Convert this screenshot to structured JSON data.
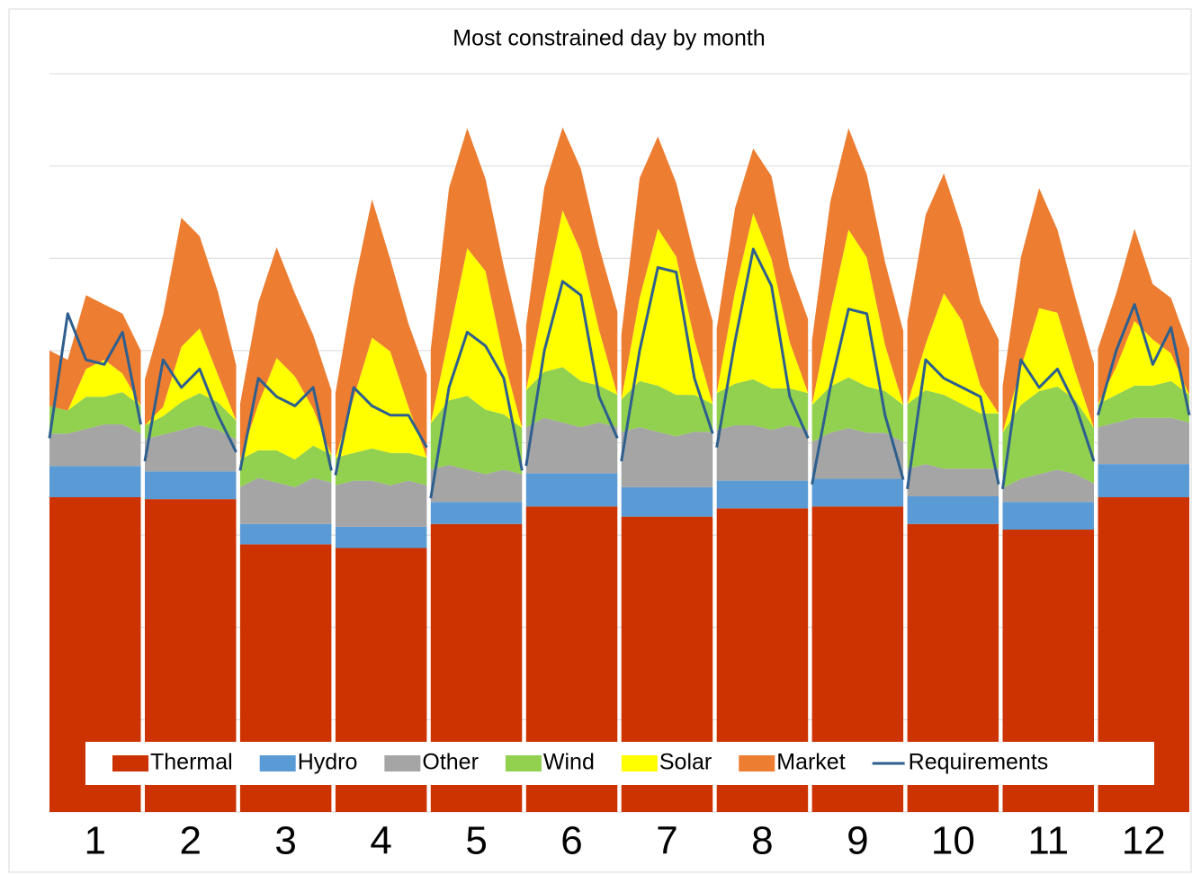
{
  "chart_data": {
    "type": "area",
    "stacked": true,
    "title": "Most constrained day by month",
    "x": [
      0,
      4.6,
      9.2,
      13.8,
      18.4,
      23,
      23.5,
      24,
      28.6,
      33.2,
      37.8,
      42.4,
      47,
      47.5,
      48,
      52.6,
      57.2,
      61.8,
      66.4,
      71,
      71.5,
      72,
      76.6,
      81.2,
      85.8,
      90.4,
      95,
      95.5,
      96,
      100.6,
      105.2,
      109.8,
      114.4,
      119,
      119.5,
      120,
      124.6,
      129.2,
      133.8,
      138.4,
      143,
      143.5,
      144,
      148.6,
      153.2,
      157.8,
      162.4,
      167,
      167.5,
      168,
      172.6,
      177.2,
      181.8,
      186.4,
      191,
      191.5,
      192,
      196.6,
      201.2,
      205.8,
      210.4,
      215,
      215.5,
      216,
      220.6,
      225.2,
      229.8,
      234.4,
      239,
      239.5,
      240,
      244.6,
      249.2,
      253.8,
      258.4,
      263,
      263.5,
      264,
      268.6,
      273.2,
      277.8,
      282.4,
      287
    ],
    "xlim": [
      0,
      287
    ],
    "xticks": [
      {
        "value": 11.5,
        "label": "1"
      },
      {
        "value": 35.5,
        "label": "2"
      },
      {
        "value": 59.5,
        "label": "3"
      },
      {
        "value": 83.5,
        "label": "4"
      },
      {
        "value": 107.5,
        "label": "5"
      },
      {
        "value": 131.5,
        "label": "6"
      },
      {
        "value": 155.5,
        "label": "7"
      },
      {
        "value": 179.5,
        "label": "8"
      },
      {
        "value": 203.5,
        "label": "9"
      },
      {
        "value": 227.5,
        "label": "10"
      },
      {
        "value": 251.5,
        "label": "11"
      },
      {
        "value": 275.5,
        "label": "12"
      }
    ],
    "ylim": [
      0,
      8
    ],
    "yticks": [
      0,
      1,
      2,
      3,
      4,
      5,
      6,
      7,
      8
    ],
    "grid": true,
    "legend": "bottom",
    "series": [
      {
        "name": "Thermal",
        "color": "#cc3300",
        "values": [
          3.41,
          3.41,
          3.41,
          3.41,
          3.41,
          3.41,
          null,
          3.39,
          3.39,
          3.39,
          3.39,
          3.39,
          3.39,
          null,
          2.9,
          2.9,
          2.9,
          2.9,
          2.9,
          2.9,
          null,
          2.86,
          2.86,
          2.86,
          2.86,
          2.86,
          2.86,
          null,
          3.12,
          3.12,
          3.12,
          3.12,
          3.12,
          3.12,
          null,
          3.31,
          3.31,
          3.31,
          3.31,
          3.31,
          3.31,
          null,
          3.2,
          3.2,
          3.2,
          3.2,
          3.2,
          3.2,
          null,
          3.29,
          3.29,
          3.29,
          3.29,
          3.29,
          3.29,
          null,
          3.31,
          3.31,
          3.31,
          3.31,
          3.31,
          3.31,
          null,
          3.12,
          3.12,
          3.12,
          3.12,
          3.12,
          3.12,
          null,
          3.06,
          3.06,
          3.06,
          3.06,
          3.06,
          3.06,
          null,
          3.41,
          3.41,
          3.41,
          3.41,
          3.41,
          3.41
        ]
      },
      {
        "name": "Hydro",
        "color": "#5b9bd5",
        "values": [
          0.34,
          0.34,
          0.34,
          0.34,
          0.34,
          0.34,
          null,
          0.3,
          0.3,
          0.3,
          0.3,
          0.3,
          0.3,
          null,
          0.22,
          0.22,
          0.22,
          0.22,
          0.22,
          0.22,
          null,
          0.23,
          0.23,
          0.23,
          0.23,
          0.23,
          0.23,
          null,
          0.24,
          0.24,
          0.24,
          0.24,
          0.24,
          0.24,
          null,
          0.36,
          0.36,
          0.36,
          0.36,
          0.36,
          0.36,
          null,
          0.32,
          0.32,
          0.32,
          0.32,
          0.32,
          0.32,
          null,
          0.3,
          0.3,
          0.3,
          0.3,
          0.3,
          0.3,
          null,
          0.3,
          0.3,
          0.3,
          0.3,
          0.3,
          0.3,
          null,
          0.3,
          0.3,
          0.3,
          0.3,
          0.3,
          0.3,
          null,
          0.3,
          0.3,
          0.3,
          0.3,
          0.3,
          0.3,
          null,
          0.36,
          0.36,
          0.36,
          0.36,
          0.36,
          0.36
        ]
      },
      {
        "name": "Other",
        "color": "#a5a5a5",
        "values": [
          0.35,
          0.35,
          0.4,
          0.45,
          0.45,
          0.35,
          null,
          0.35,
          0.4,
          0.45,
          0.5,
          0.45,
          0.35,
          null,
          0.4,
          0.5,
          0.45,
          0.4,
          0.5,
          0.45,
          null,
          0.45,
          0.5,
          0.5,
          0.45,
          0.5,
          0.45,
          null,
          0.35,
          0.4,
          0.35,
          0.3,
          0.35,
          0.3,
          null,
          0.5,
          0.6,
          0.55,
          0.5,
          0.55,
          0.5,
          null,
          0.6,
          0.65,
          0.6,
          0.55,
          0.6,
          0.6,
          null,
          0.55,
          0.6,
          0.6,
          0.55,
          0.6,
          0.55,
          null,
          0.4,
          0.5,
          0.55,
          0.5,
          0.5,
          0.4,
          null,
          0.3,
          0.35,
          0.3,
          0.3,
          0.3,
          0.3,
          null,
          0.15,
          0.25,
          0.3,
          0.35,
          0.3,
          0.2,
          null,
          0.4,
          0.45,
          0.5,
          0.5,
          0.5,
          0.45
        ]
      },
      {
        "name": "Wind",
        "color": "#92d050",
        "values": [
          0.3,
          0.25,
          0.35,
          0.3,
          0.35,
          0.3,
          null,
          0.15,
          0.2,
          0.3,
          0.35,
          0.3,
          0.2,
          null,
          0.3,
          0.3,
          0.35,
          0.3,
          0.35,
          0.3,
          null,
          0.3,
          0.3,
          0.35,
          0.35,
          0.3,
          0.3,
          null,
          0.5,
          0.7,
          0.8,
          0.7,
          0.6,
          0.5,
          null,
          0.4,
          0.5,
          0.6,
          0.5,
          0.4,
          0.35,
          null,
          0.35,
          0.5,
          0.5,
          0.45,
          0.4,
          0.3,
          null,
          0.4,
          0.45,
          0.5,
          0.45,
          0.4,
          0.4,
          null,
          0.4,
          0.5,
          0.55,
          0.5,
          0.45,
          0.4,
          null,
          0.7,
          0.8,
          0.8,
          0.7,
          0.6,
          0.6,
          null,
          0.6,
          0.8,
          0.9,
          0.9,
          0.8,
          0.6,
          null,
          0.25,
          0.3,
          0.35,
          0.35,
          0.4,
          0.3
        ]
      },
      {
        "name": "Solar",
        "color": "#ffff00",
        "values": [
          0,
          0,
          0.3,
          0.4,
          0.2,
          0,
          null,
          0,
          0.1,
          0.6,
          0.7,
          0.3,
          0,
          null,
          0,
          0.5,
          1.0,
          0.9,
          0.4,
          0,
          null,
          0,
          0.6,
          1.2,
          1.1,
          0.5,
          0,
          null,
          0,
          0.7,
          1.6,
          1.5,
          0.6,
          0,
          null,
          0,
          0.8,
          1.7,
          1.4,
          0.6,
          0,
          null,
          0,
          0.9,
          1.7,
          1.5,
          0.6,
          0,
          null,
          0,
          1.0,
          1.8,
          1.4,
          0.5,
          0,
          null,
          0,
          0.8,
          1.6,
          1.4,
          0.5,
          0,
          null,
          0,
          0.5,
          1.1,
          0.9,
          0.3,
          0,
          null,
          0,
          0.4,
          0.9,
          0.8,
          0.3,
          0,
          null,
          0,
          0.3,
          0.7,
          0.5,
          0.3,
          0
        ]
      },
      {
        "name": "Market",
        "color": "#ed7d31",
        "values": [
          0.6,
          0.55,
          0.8,
          0.6,
          0.65,
          0.6,
          null,
          0.5,
          1.0,
          1.4,
          1.0,
          0.9,
          0.6,
          null,
          0.6,
          1.1,
          1.2,
          0.9,
          0.8,
          0.7,
          null,
          0.7,
          1.2,
          1.5,
          1.0,
          0.9,
          0.9,
          null,
          0.8,
          1.6,
          1.3,
          1.0,
          1.0,
          0.9,
          null,
          0.7,
          1.2,
          0.9,
          0.9,
          0.9,
          0.9,
          null,
          0.7,
          1.3,
          1.0,
          0.8,
          0.9,
          0.9,
          null,
          0.7,
          0.9,
          0.7,
          0.9,
          0.8,
          0.8,
          null,
          0.7,
          1.2,
          1.1,
          0.9,
          0.9,
          0.8,
          null,
          0.9,
          1.4,
          1.3,
          1.0,
          0.9,
          0.8,
          null,
          0.5,
          1.2,
          1.3,
          0.9,
          0.8,
          0.7,
          null,
          0.6,
          0.8,
          1.0,
          0.6,
          0.6,
          0.5
        ]
      },
      {
        "name": "Requirements",
        "type": "line",
        "color": "#2e5f8e",
        "values": [
          4.05,
          5.4,
          4.9,
          4.85,
          5.2,
          4.2,
          null,
          3.8,
          4.9,
          4.6,
          4.8,
          4.3,
          3.9,
          null,
          3.7,
          4.7,
          4.5,
          4.4,
          4.6,
          3.7,
          null,
          3.65,
          4.6,
          4.4,
          4.3,
          4.3,
          3.95,
          null,
          3.4,
          4.6,
          5.2,
          5.05,
          4.7,
          3.7,
          null,
          3.75,
          5.0,
          5.75,
          5.6,
          4.5,
          4.05,
          null,
          3.8,
          5.0,
          5.9,
          5.85,
          4.7,
          4.1,
          null,
          3.95,
          5.1,
          6.1,
          5.7,
          4.5,
          4.05,
          null,
          3.55,
          4.6,
          5.45,
          5.4,
          4.3,
          3.6,
          null,
          3.5,
          4.9,
          4.7,
          4.6,
          4.5,
          3.55,
          null,
          3.5,
          4.9,
          4.6,
          4.8,
          4.4,
          3.8,
          null,
          4.3,
          5.0,
          5.5,
          4.85,
          5.25,
          4.3
        ]
      }
    ]
  }
}
